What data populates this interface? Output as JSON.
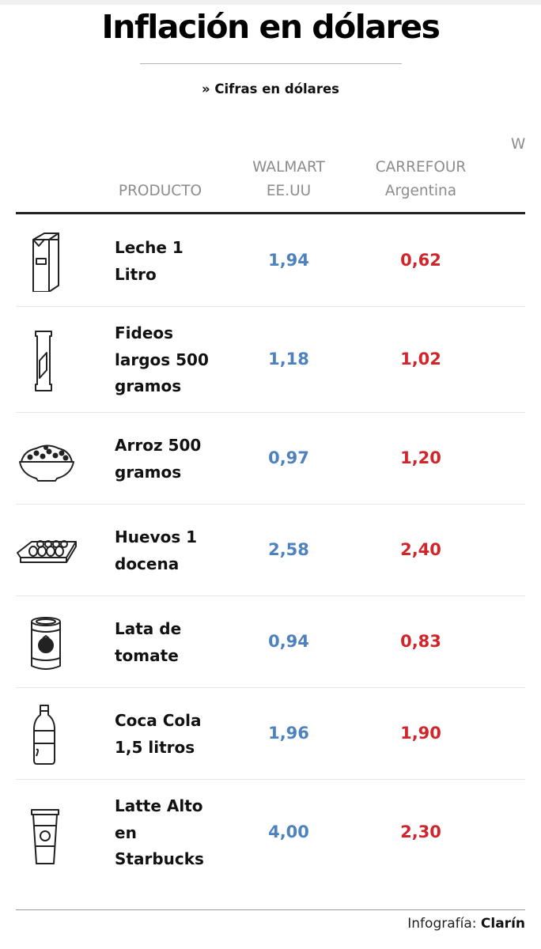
{
  "header": {
    "title": "Inflación en dólares",
    "subtitle": "» Cifras en dólares"
  },
  "columns": {
    "product": "PRODUCTO",
    "walmart_line1": "WALMART",
    "walmart_line2": "EE.UU",
    "carrefour_line1": "CARREFOUR",
    "carrefour_line2": "Argentina",
    "cut_off": "W"
  },
  "chart_data": {
    "type": "table",
    "title": "Inflación en dólares",
    "subtitle": "» Cifras en dólares",
    "columns": [
      "PRODUCTO",
      "WALMART EE.UU",
      "CARREFOUR Argentina"
    ],
    "rows": [
      {
        "product": "Leche 1 Litro",
        "icon": "milk-carton-icon",
        "walmart_usa": "1,94",
        "carrefour_arg": "0,62"
      },
      {
        "product": "Fideos largos 500 gramos",
        "icon": "pasta-package-icon",
        "walmart_usa": "1,18",
        "carrefour_arg": "1,02"
      },
      {
        "product": "Arroz 500 gramos",
        "icon": "rice-bowl-icon",
        "walmart_usa": "0,97",
        "carrefour_arg": "1,20"
      },
      {
        "product": "Huevos 1 docena",
        "icon": "egg-carton-icon",
        "walmart_usa": "2,58",
        "carrefour_arg": "2,40"
      },
      {
        "product": "Lata de tomate",
        "icon": "tomato-can-icon",
        "walmart_usa": "0,94",
        "carrefour_arg": "0,83"
      },
      {
        "product": "Coca Cola 1,5 litros",
        "icon": "soda-bottle-icon",
        "walmart_usa": "1,96",
        "carrefour_arg": "1,90"
      },
      {
        "product": "Latte Alto en Starbucks",
        "icon": "coffee-cup-icon",
        "walmart_usa": "4,00",
        "carrefour_arg": "2,30"
      }
    ]
  },
  "rows_display": [
    {
      "lines": [
        "Leche 1",
        "Litro"
      ]
    },
    {
      "lines": [
        "Fideos",
        "largos 500",
        "gramos"
      ]
    },
    {
      "lines": [
        "Arroz 500",
        "gramos"
      ]
    },
    {
      "lines": [
        "Huevos 1",
        "docena"
      ]
    },
    {
      "lines": [
        "Lata de",
        "tomate"
      ]
    },
    {
      "lines": [
        "Coca Cola",
        "1,5 litros"
      ]
    },
    {
      "lines": [
        "Latte Alto",
        "en",
        "Starbucks"
      ]
    }
  ],
  "footer": {
    "credit_label": "Infografía:",
    "credit_brand": "Clarín"
  },
  "colors": {
    "walmart_value": "#4d82bf",
    "carrefour_value": "#d0262b"
  }
}
